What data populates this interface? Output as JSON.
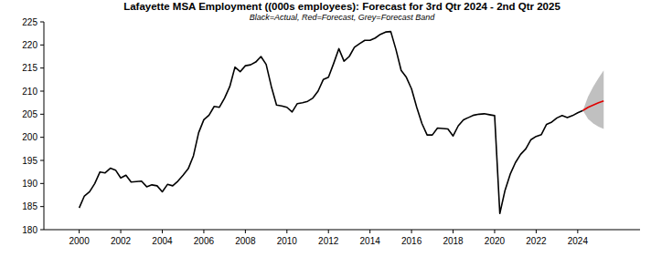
{
  "chart_data": {
    "type": "line",
    "title": "Lafayette MSA Employment ((000s employees): Forecast for 3rd Qtr 2024 - 2nd Qtr 2025",
    "subtitle": "Black=Actual, Red=Forecast, Grey=Forecast Band",
    "xlim": [
      1998.3,
      2027.0
    ],
    "xticks": [
      2000,
      2002,
      2004,
      2006,
      2008,
      2010,
      2012,
      2014,
      2016,
      2018,
      2020,
      2022,
      2024
    ],
    "ylim": [
      180,
      225
    ],
    "yticks": [
      180,
      185,
      190,
      195,
      200,
      205,
      210,
      215,
      220,
      225
    ],
    "grid": false,
    "series": [
      {
        "type": "band",
        "color": "#c0c0c0",
        "x": [
          2024.25,
          2024.5,
          2024.75,
          2025,
          2025.25
        ],
        "lower": [
          205.8,
          204.0,
          203.0,
          202.3,
          201.8
        ],
        "values": [
          205.8,
          208.8,
          211.0,
          212.8,
          214.5
        ]
      },
      {
        "type": "line",
        "color": "#000000",
        "x": [
          2000,
          2000.25,
          2000.5,
          2000.75,
          2001,
          2001.25,
          2001.5,
          2001.75,
          2002,
          2002.25,
          2002.5,
          2002.75,
          2003,
          2003.25,
          2003.5,
          2003.75,
          2004,
          2004.25,
          2004.5,
          2004.75,
          2005,
          2005.25,
          2005.5,
          2005.75,
          2006,
          2006.25,
          2006.5,
          2006.75,
          2007,
          2007.25,
          2007.5,
          2007.75,
          2008,
          2008.25,
          2008.5,
          2008.75,
          2009,
          2009.25,
          2009.5,
          2009.75,
          2010,
          2010.25,
          2010.5,
          2010.75,
          2011,
          2011.25,
          2011.5,
          2011.75,
          2012,
          2012.25,
          2012.5,
          2012.75,
          2013,
          2013.25,
          2013.5,
          2013.75,
          2014,
          2014.25,
          2014.5,
          2014.75,
          2015,
          2015.25,
          2015.5,
          2015.75,
          2016,
          2016.25,
          2016.5,
          2016.75,
          2017,
          2017.25,
          2017.5,
          2017.75,
          2018,
          2018.25,
          2018.5,
          2018.75,
          2019,
          2019.25,
          2019.5,
          2019.75,
          2020,
          2020.25,
          2020.5,
          2020.75,
          2021,
          2021.25,
          2021.5,
          2021.75,
          2022,
          2022.25,
          2022.5,
          2022.75,
          2023,
          2023.25,
          2023.5,
          2023.75,
          2024,
          2024.25
        ],
        "values": [
          184.7,
          187.3,
          188.2,
          190.0,
          192.5,
          192.3,
          193.3,
          192.9,
          191.2,
          191.8,
          190.3,
          190.4,
          190.5,
          189.3,
          189.7,
          189.5,
          188.2,
          189.8,
          189.5,
          190.5,
          191.8,
          193.2,
          196.0,
          201.0,
          203.8,
          204.8,
          206.7,
          206.5,
          208.5,
          211.0,
          215.2,
          214.2,
          215.5,
          215.7,
          216.3,
          217.5,
          215.8,
          211.0,
          207.0,
          206.8,
          206.5,
          205.5,
          207.3,
          207.5,
          207.8,
          208.5,
          210.0,
          212.5,
          213.0,
          216.0,
          219.2,
          216.5,
          217.5,
          219.5,
          220.3,
          221.0,
          221.0,
          221.5,
          222.3,
          222.8,
          222.9,
          219.0,
          214.5,
          213.0,
          210.5,
          206.5,
          203.0,
          200.5,
          200.5,
          202.0,
          201.9,
          201.8,
          200.3,
          202.5,
          203.8,
          204.3,
          204.8,
          205.0,
          205.1,
          204.9,
          204.7,
          183.5,
          188.5,
          192.0,
          194.5,
          196.3,
          197.5,
          199.5,
          200.2,
          200.6,
          202.8,
          203.3,
          204.2,
          204.7,
          204.3,
          204.7,
          205.3,
          205.8
        ]
      },
      {
        "type": "line",
        "color": "#e00000",
        "x": [
          2024.25,
          2024.5,
          2024.75,
          2025,
          2025.25
        ],
        "values": [
          205.8,
          206.5,
          207.0,
          207.5,
          207.9
        ]
      }
    ]
  }
}
